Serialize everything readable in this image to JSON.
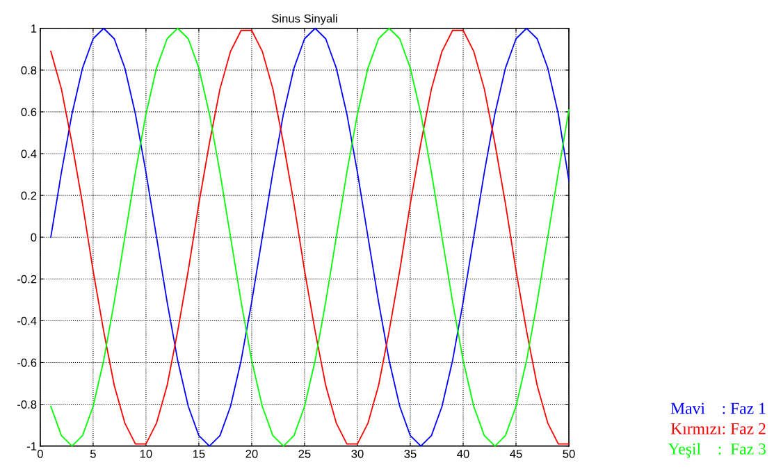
{
  "chart_data": {
    "type": "line",
    "title": "Sinus Sinyali",
    "x": [
      1,
      2,
      3,
      4,
      5,
      6,
      7,
      8,
      9,
      10,
      11,
      12,
      13,
      14,
      15,
      16,
      17,
      18,
      19,
      20,
      21,
      22,
      23,
      24,
      25,
      26,
      27,
      28,
      29,
      30,
      31,
      32,
      33,
      34,
      35,
      36,
      37,
      38,
      39,
      40,
      41,
      42,
      43,
      44,
      45,
      46,
      47,
      48,
      49,
      50
    ],
    "series": [
      {
        "name": "Mavi    : Faz 1",
        "color": "#0000ff",
        "values": [
          0,
          0.31,
          0.59,
          0.81,
          0.95,
          1,
          0.95,
          0.81,
          0.59,
          0.31,
          0,
          -0.31,
          -0.59,
          -0.81,
          -0.95,
          -1,
          -0.95,
          -0.81,
          -0.59,
          -0.31,
          0,
          0.31,
          0.59,
          0.81,
          0.95,
          1,
          0.95,
          0.81,
          0.59,
          0.31,
          0,
          -0.31,
          -0.59,
          -0.81,
          -0.95,
          -1,
          -0.95,
          -0.81,
          -0.59,
          -0.31,
          0,
          0.31,
          0.59,
          0.81,
          0.95,
          1,
          0.95,
          0.81,
          0.59,
          0.27
        ]
      },
      {
        "name": "Kırmızı: Faz 2",
        "color": "#ff0000",
        "values": [
          0.89,
          0.71,
          0.45,
          0.16,
          -0.16,
          -0.45,
          -0.71,
          -0.89,
          -0.99,
          -0.99,
          -0.89,
          -0.71,
          -0.45,
          -0.16,
          0.16,
          0.45,
          0.71,
          0.89,
          0.99,
          0.99,
          0.89,
          0.71,
          0.45,
          0.16,
          -0.16,
          -0.45,
          -0.71,
          -0.89,
          -0.99,
          -0.99,
          -0.89,
          -0.71,
          -0.45,
          -0.16,
          0.16,
          0.45,
          0.71,
          0.89,
          0.99,
          0.99,
          0.89,
          0.71,
          0.45,
          0.16,
          -0.16,
          -0.45,
          -0.71,
          -0.89,
          -0.99,
          -0.99
        ]
      },
      {
        "name": "Yeşil    :  Faz 3",
        "color": "#00ff00",
        "values": [
          -0.81,
          -0.95,
          -1,
          -0.95,
          -0.81,
          -0.59,
          -0.31,
          0,
          0.31,
          0.59,
          0.81,
          0.95,
          1,
          0.95,
          0.81,
          0.59,
          0.31,
          0,
          -0.31,
          -0.59,
          -0.81,
          -0.95,
          -1,
          -0.95,
          -0.81,
          -0.59,
          -0.31,
          0,
          0.31,
          0.59,
          0.81,
          0.95,
          1,
          0.95,
          0.81,
          0.59,
          0.31,
          0,
          -0.31,
          -0.59,
          -0.81,
          -0.95,
          -1,
          -0.95,
          -0.81,
          -0.59,
          -0.31,
          0,
          0.31,
          0.61
        ]
      }
    ],
    "xlim": [
      0,
      50
    ],
    "xticks": [
      0,
      5,
      10,
      15,
      20,
      25,
      30,
      35,
      40,
      45,
      50
    ],
    "ylim": [
      -1,
      1
    ],
    "yticks": [
      -1,
      -0.8,
      -0.6,
      -0.4,
      -0.2,
      0,
      0.2,
      0.4,
      0.6,
      0.8,
      1
    ],
    "grid": true,
    "legend": "bottom right",
    "marker": "none",
    "line_style": "solid"
  }
}
